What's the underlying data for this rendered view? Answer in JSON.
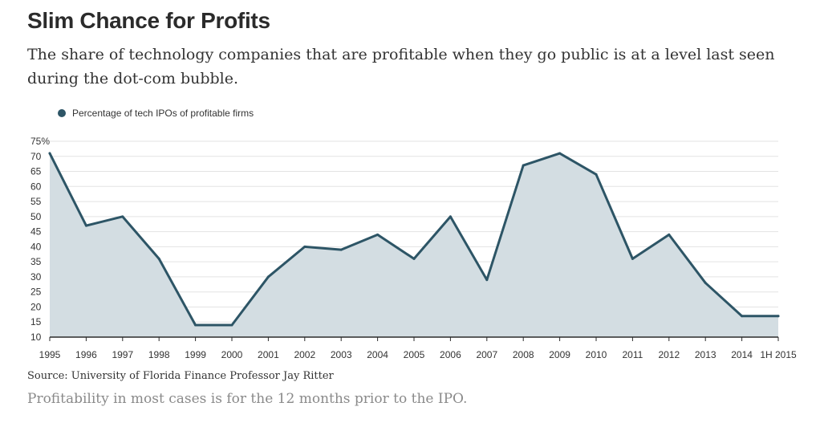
{
  "header": {
    "title": "Slim Chance for Profits",
    "subtitle": "The share of technology companies that are profitable when they go public is at a level last seen during the dot-com bubble."
  },
  "footer": {
    "source": "Source: University of Florida Finance Professor Jay Ritter",
    "note": "Profitability in most cases is for the 12 months prior to the IPO."
  },
  "colors": {
    "line": "#2d5566",
    "area": "#d3dde2",
    "grid": "#e3e3e3",
    "axis": "#2b2b2b"
  },
  "chart_data": {
    "type": "area",
    "categories": [
      "1995",
      "1996",
      "1997",
      "1998",
      "1999",
      "2000",
      "2001",
      "2002",
      "2003",
      "2004",
      "2005",
      "2006",
      "2007",
      "2008",
      "2009",
      "2010",
      "2011",
      "2012",
      "2013",
      "2014",
      "1H 2015"
    ],
    "series": [
      {
        "name": "Percentage of tech IPOs of profitable firms",
        "values": [
          71,
          47,
          50,
          36,
          14,
          14,
          30,
          40,
          39,
          44,
          36,
          50,
          29,
          67,
          71,
          64,
          36,
          44,
          28,
          17,
          17
        ]
      }
    ],
    "ylim": [
      10,
      75
    ],
    "yticks": [
      "75%",
      "70",
      "65",
      "60",
      "55",
      "50",
      "45",
      "40",
      "35",
      "30",
      "25",
      "20",
      "15",
      "10"
    ],
    "grid": true,
    "legend_position": "top-left"
  }
}
